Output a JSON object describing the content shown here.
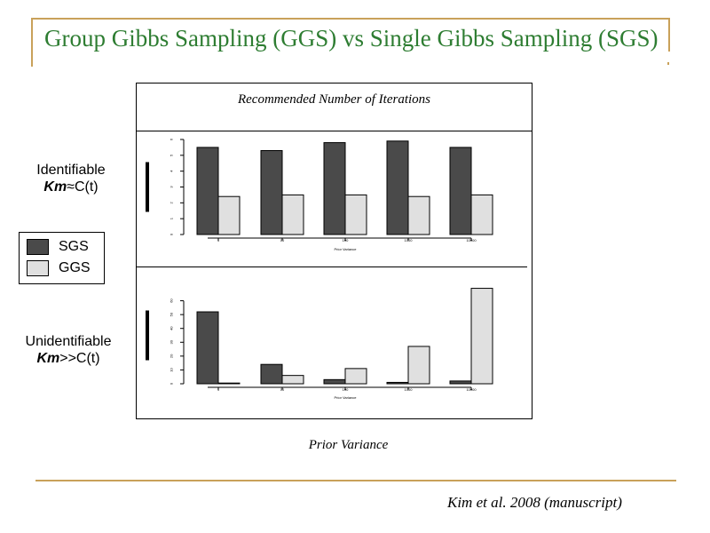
{
  "slide": {
    "title": "Group Gibbs Sampling (GGS) vs Single Gibbs Sampling (SGS)",
    "citation": "Kim et al. 2008 (manuscript)"
  },
  "figure": {
    "caption": "Recommended Number of Iterations",
    "xlabel": "Prior Variance"
  },
  "rows": {
    "identifiable": {
      "line1": "Identifiable",
      "km": "Km",
      "rel": "≈",
      "rhs": "C(t)"
    },
    "unidentifiable": {
      "line1": "Unidentifiable",
      "km": "Km",
      "rel": ">>",
      "rhs": "C(t)"
    }
  },
  "legend": {
    "items": [
      {
        "label": "SGS",
        "color": "#4a4a4a"
      },
      {
        "label": "GGS",
        "color": "#e0e0e0"
      }
    ]
  },
  "chart_data": [
    {
      "type": "bar",
      "categories": [
        "1",
        "10",
        "100",
        "1000",
        "10000"
      ],
      "series": [
        {
          "name": "SGS",
          "values": [
            5.5,
            5.3,
            5.8,
            5.9,
            5.5
          ]
        },
        {
          "name": "GGS",
          "values": [
            2.4,
            2.5,
            2.5,
            2.4,
            2.5
          ]
        }
      ],
      "xlabel": "Prior Variance",
      "ylim": [
        0,
        6
      ]
    },
    {
      "type": "bar",
      "categories": [
        "1",
        "10",
        "100",
        "1000",
        "10000"
      ],
      "series": [
        {
          "name": "SGS",
          "values": [
            52,
            14,
            3,
            1,
            2
          ]
        },
        {
          "name": "GGS",
          "values": [
            0,
            6,
            11,
            27,
            69
          ]
        }
      ],
      "xlabel": "Prior Variance",
      "ylim": [
        0,
        70
      ]
    }
  ]
}
